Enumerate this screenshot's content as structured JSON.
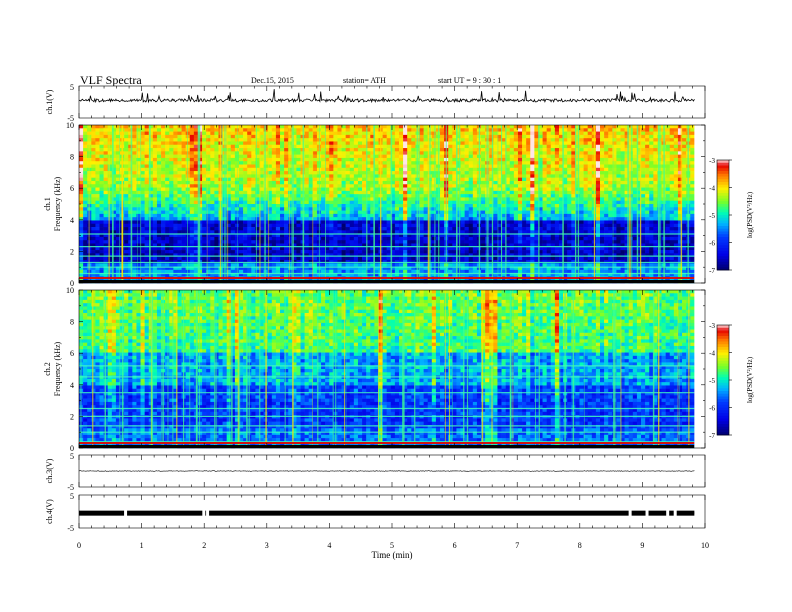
{
  "header": {
    "title": "VLF  Spectra",
    "date": "Dec.15, 2015",
    "station": "station= ATH",
    "start": "start  UT  =    9  : 30 : 1"
  },
  "chart_data": [
    {
      "type": "line",
      "panel": "ch1-waveform",
      "ylabel": "ch.1(V)",
      "yticks": [
        "5",
        "-5"
      ],
      "ylim": [
        -5,
        5
      ],
      "xlim": [
        0,
        10
      ],
      "approx_level": 0.5,
      "duration_min": 9.83
    },
    {
      "type": "heatmap",
      "panel": "ch1-spectrogram",
      "ylabel": "Frequency  (kHz)",
      "channel_label": "ch.1",
      "yticks": [
        "0",
        "2",
        "4",
        "6",
        "8",
        "10"
      ],
      "ylim": [
        0,
        10
      ],
      "xlim": [
        0,
        10
      ],
      "colorbar": {
        "label": "log(PSD(V²/Hz)",
        "ticks": [
          "-3",
          "-4",
          "-5",
          "-6",
          "-7"
        ],
        "range": [
          -7,
          -3
        ]
      },
      "bands_khz": [
        0.3,
        0.6,
        1.0,
        1.3,
        1.7,
        2.3,
        3.1
      ],
      "note_level_by_freq": {
        "0-1": -4.5,
        "2-4": -6.8,
        "6-10": -4.2
      }
    },
    {
      "type": "heatmap",
      "panel": "ch2-spectrogram",
      "ylabel": "Frequency  (kHz)",
      "channel_label": "ch.2",
      "yticks": [
        "0",
        "2",
        "4",
        "6",
        "8",
        "10"
      ],
      "ylim": [
        0,
        10
      ],
      "xlim": [
        0,
        10
      ],
      "colorbar": {
        "label": "log(PSD(V²/Hz)",
        "ticks": [
          "-3",
          "-4",
          "-5",
          "-6",
          "-7"
        ],
        "range": [
          -7,
          -3
        ]
      },
      "bands_khz": [
        0.4,
        1.0,
        1.4,
        2.0,
        2.5,
        3.5,
        4.5,
        5.2
      ],
      "note_level_by_freq": {
        "0-1": -5.0,
        "2-4": -6.2,
        "6-10": -5.0
      }
    },
    {
      "type": "line",
      "panel": "ch3-waveform",
      "ylabel": "ch.3(V)",
      "yticks": [
        "5",
        "-5"
      ],
      "ylim": [
        -5,
        5
      ],
      "xlim": [
        0,
        10
      ],
      "approx_level": 0.0,
      "duration_min": 9.83
    },
    {
      "type": "line",
      "panel": "ch4-waveform",
      "ylabel": "ch.4(V)",
      "yticks": [
        "5",
        "-5"
      ],
      "ylim": [
        -5,
        5
      ],
      "xlim": [
        0,
        10
      ],
      "approx_level": -0.5,
      "duration_min": 9.83,
      "gaps_min": [
        0.72,
        1.97,
        2.03,
        8.78,
        9.05,
        9.38,
        9.5
      ]
    }
  ],
  "xaxis": {
    "label": "Time  (min)",
    "ticks": [
      "0",
      "1",
      "2",
      "3",
      "4",
      "5",
      "6",
      "7",
      "8",
      "9",
      "10"
    ]
  },
  "colors": {
    "palette": [
      "#000080",
      "#0000ff",
      "#00b0ff",
      "#00ff80",
      "#80ff00",
      "#ffff00",
      "#ff8000",
      "#ff0000",
      "#ffe0e0"
    ]
  }
}
